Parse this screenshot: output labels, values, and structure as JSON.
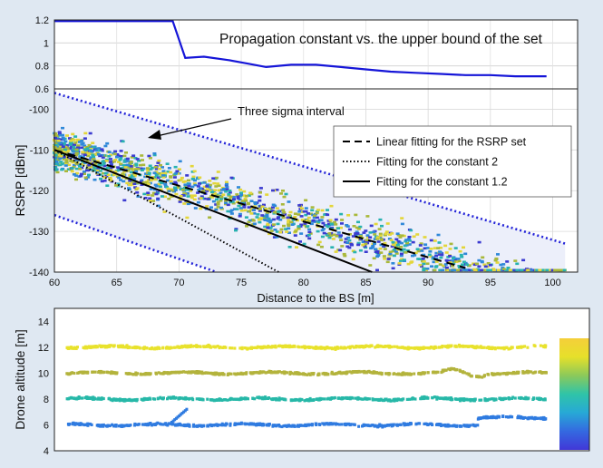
{
  "chart_data": [
    {
      "type": "line",
      "title": "Propagation constant vs. the upper bound of the set",
      "xlim": [
        60,
        102
      ],
      "ylim": [
        0.6,
        1.2
      ],
      "yticks": [
        0.6,
        0.8,
        1,
        1.2
      ],
      "ytick_labels": [
        "0.6",
        "0.8",
        "1",
        "1.2"
      ],
      "grid": true,
      "line_color": "#1515d8",
      "series": [
        {
          "x": [
            60,
            63,
            66,
            68.5,
            69.5,
            70.5,
            72,
            74,
            75.5,
            77,
            79,
            81,
            83,
            85,
            87,
            89,
            91,
            93,
            95,
            97,
            99.5
          ],
          "y": [
            1.19,
            1.19,
            1.19,
            1.19,
            1.19,
            0.87,
            0.88,
            0.85,
            0.82,
            0.79,
            0.81,
            0.81,
            0.79,
            0.77,
            0.75,
            0.74,
            0.73,
            0.72,
            0.72,
            0.71,
            0.71
          ]
        }
      ]
    },
    {
      "type": "scatter",
      "xlabel": "Distance to the BS [m]",
      "ylabel": "RSRP [dBm]",
      "xlim": [
        60,
        102
      ],
      "ylim": [
        -140,
        -95
      ],
      "xticks": [
        60,
        65,
        70,
        75,
        80,
        85,
        90,
        95,
        100
      ],
      "xtick_labels": [
        "60",
        "65",
        "70",
        "75",
        "80",
        "85",
        "90",
        "95",
        "100"
      ],
      "yticks": [
        -140,
        -130,
        -120,
        -110,
        -100
      ],
      "ytick_labels": [
        "-140",
        "-130",
        "-120",
        "-110",
        "-100"
      ],
      "grid": true,
      "annotation": "Three sigma interval",
      "legend_position": "top-right",
      "legend": [
        {
          "label": "Linear fitting for the RSRP set",
          "style": "dashed"
        },
        {
          "label": "Fitting for the constant 2",
          "style": "dotted"
        },
        {
          "label": "Fitting for the constant 1.2",
          "style": "solid"
        }
      ],
      "fit_lines": [
        {
          "name": "linear",
          "x": [
            60,
            93
          ],
          "y": [
            -110,
            -139
          ]
        },
        {
          "name": "constant_2",
          "x": [
            60,
            78
          ],
          "y": [
            -110,
            -140
          ]
        },
        {
          "name": "constant_1.2",
          "x": [
            60,
            85.5
          ],
          "y": [
            -110,
            -140
          ]
        }
      ],
      "sigma_upper": {
        "x": [
          60,
          101
        ],
        "y": [
          -96,
          -133
        ]
      },
      "sigma_lower": {
        "x": [
          60,
          73
        ],
        "y": [
          -126,
          -140
        ]
      },
      "point_colors": [
        "#3b3bd0",
        "#2f88d8",
        "#28b2b0",
        "#a9b83a",
        "#e3d63a"
      ]
    },
    {
      "type": "scatter",
      "ylabel": "Drone altitude [m]",
      "xlim": [
        60,
        102
      ],
      "ylim": [
        4,
        15
      ],
      "yticks": [
        4,
        6,
        8,
        10,
        12,
        14
      ],
      "ytick_labels": [
        "4",
        "6",
        "8",
        "10",
        "12",
        "14"
      ],
      "grid": false,
      "series": [
        {
          "level": 12,
          "color": "#e8e22c"
        },
        {
          "level": 10,
          "color": "#b3b33c"
        },
        {
          "level": 8,
          "color": "#27b8a8"
        },
        {
          "level": 6,
          "color": "#2f7be0"
        }
      ],
      "colorbar": [
        "#f5cf3a",
        "#e6e02a",
        "#8cc95a",
        "#2fc4a8",
        "#27a9d6",
        "#3469e0",
        "#4137d8"
      ]
    }
  ]
}
